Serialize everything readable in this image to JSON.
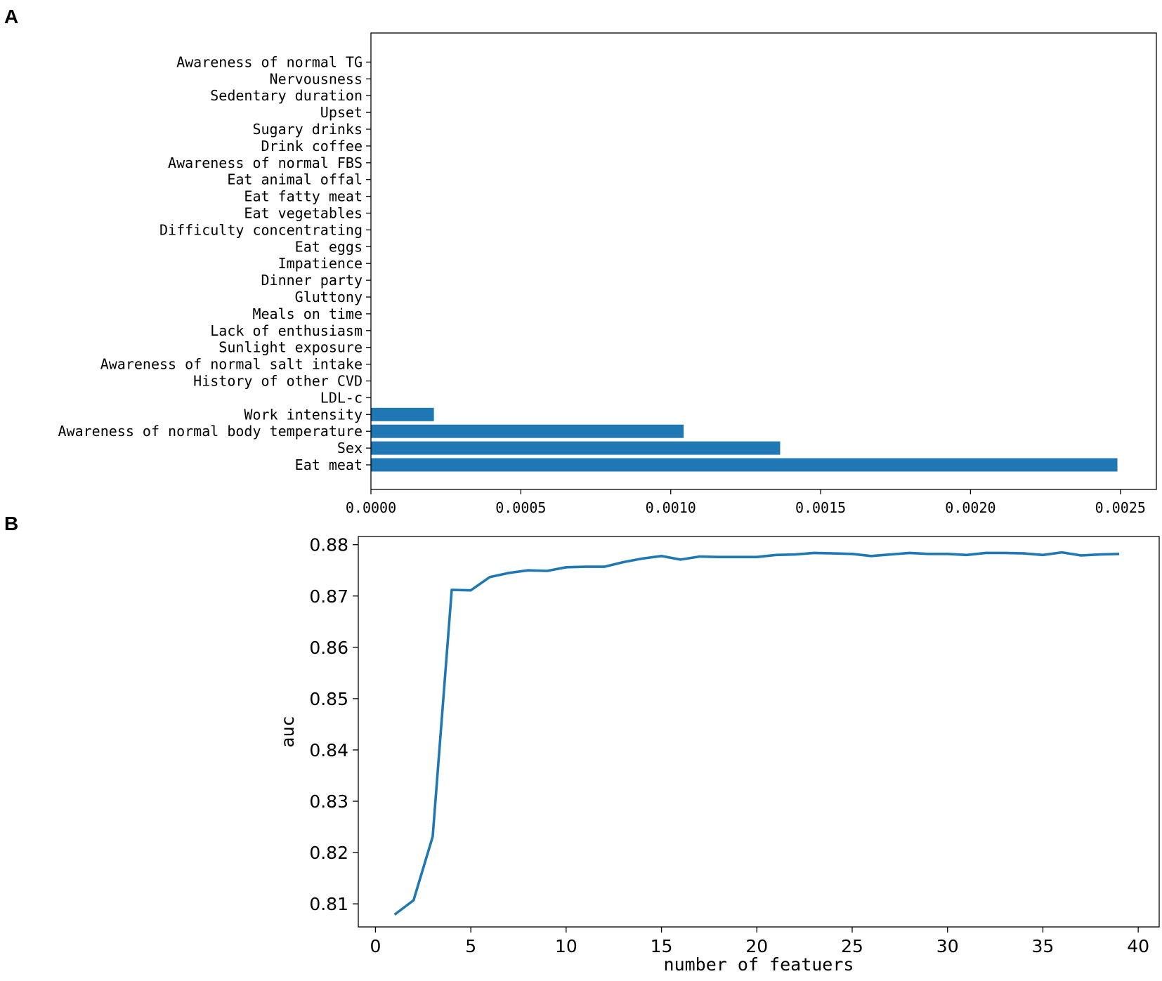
{
  "chart_data": [
    {
      "panel": "A",
      "type": "bar",
      "orientation": "horizontal",
      "categories": [
        "Eat meat",
        "Sex",
        "Awareness of normal body temperature",
        "Work intensity",
        "LDL-c",
        "History of other CVD",
        "Awareness of normal salt intake",
        "Sunlight exposure",
        "Lack of enthusiasm",
        "Meals on time",
        "Gluttony",
        "Dinner party",
        "Impatience",
        "Eat eggs",
        "Difficulty concentrating",
        "Eat vegetables",
        "Eat fatty meat",
        "Eat animal offal",
        "Awareness of normal FBS",
        "Drink coffee",
        "Sugary drinks",
        "Upset",
        "Sedentary duration",
        "Nervousness",
        "Awareness of normal TG"
      ],
      "values": [
        0.00249,
        0.001365,
        0.001043,
        0.00021,
        0,
        0,
        0,
        0,
        0,
        0,
        0,
        0,
        0,
        0,
        0,
        0,
        0,
        0,
        0,
        0,
        0,
        0,
        0,
        0,
        0
      ],
      "xlim": [
        0,
        0.00262
      ],
      "xticks": [
        "0.0000",
        "0.0005",
        "0.0010",
        "0.0015",
        "0.0020",
        "0.0025"
      ],
      "xtick_values": [
        0,
        0.0005,
        0.001,
        0.0015,
        0.002,
        0.0025
      ],
      "bar_color": "#1f77b4",
      "grid": false
    },
    {
      "panel": "B",
      "type": "line",
      "x": [
        1,
        2,
        3,
        4,
        5,
        6,
        7,
        8,
        9,
        10,
        11,
        12,
        13,
        14,
        15,
        16,
        17,
        18,
        19,
        20,
        21,
        22,
        23,
        24,
        25,
        26,
        27,
        28,
        29,
        30,
        31,
        32,
        33,
        34,
        35,
        36,
        37,
        38,
        39
      ],
      "y": [
        0.8079,
        0.8107,
        0.8231,
        0.8712,
        0.8711,
        0.8737,
        0.8745,
        0.875,
        0.8749,
        0.8756,
        0.8757,
        0.8757,
        0.8766,
        0.8773,
        0.8778,
        0.8771,
        0.8777,
        0.8776,
        0.8776,
        0.8776,
        0.878,
        0.8781,
        0.8784,
        0.8783,
        0.8782,
        0.8778,
        0.8781,
        0.8784,
        0.8782,
        0.8782,
        0.878,
        0.8784,
        0.8784,
        0.8783,
        0.878,
        0.8785,
        0.8779,
        0.8781,
        0.8782
      ],
      "xlabel": "number of featuers",
      "ylabel": "auc",
      "xlim": [
        -0.9,
        41.1
      ],
      "ylim": [
        0.8055,
        0.8816
      ],
      "xticks": [
        "0",
        "5",
        "10",
        "15",
        "20",
        "25",
        "30",
        "35",
        "40"
      ],
      "xtick_values": [
        0,
        5,
        10,
        15,
        20,
        25,
        30,
        35,
        40
      ],
      "yticks": [
        "0.81",
        "0.82",
        "0.83",
        "0.84",
        "0.85",
        "0.86",
        "0.87",
        "0.88"
      ],
      "ytick_values": [
        0.81,
        0.82,
        0.83,
        0.84,
        0.85,
        0.86,
        0.87,
        0.88
      ],
      "line_color": "#1f77b4",
      "grid": false
    }
  ],
  "panels": {
    "a_letter": "A",
    "b_letter": "B"
  }
}
